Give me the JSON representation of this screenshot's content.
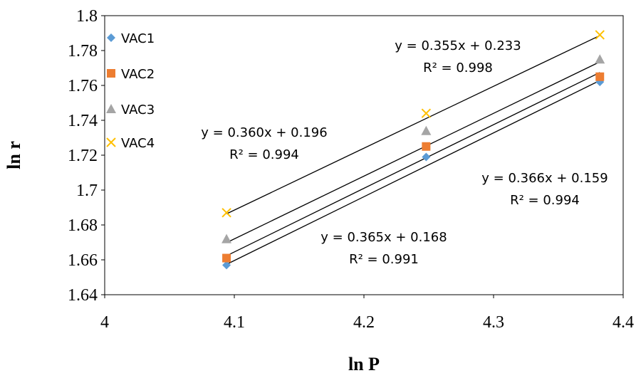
{
  "chart_data": {
    "type": "scatter",
    "title": "",
    "xlabel": "ln P",
    "ylabel": "ln r",
    "xlim": [
      4,
      4.4
    ],
    "ylim": [
      1.64,
      1.8
    ],
    "xticks": [
      "4",
      "4.1",
      "4.2",
      "4.3",
      "4.4"
    ],
    "yticks": [
      "1.64",
      "1.66",
      "1.68",
      "1.7",
      "1.72",
      "1.74",
      "1.76",
      "1.78",
      "1.8"
    ],
    "grid": false,
    "legend_position": "top-left",
    "series": [
      {
        "name": "VAC1",
        "marker": "diamond",
        "color": "#5b9bd5",
        "x": [
          4.094,
          4.248,
          4.382
        ],
        "y": [
          1.657,
          1.719,
          1.762
        ],
        "trendline": {
          "slope": 0.365,
          "intercept": 0.168,
          "equation": "y = 0.365x + 0.168",
          "r2": "R² = 0.991"
        }
      },
      {
        "name": "VAC2",
        "marker": "square",
        "color": "#ed7d31",
        "x": [
          4.094,
          4.248,
          4.382
        ],
        "y": [
          1.661,
          1.725,
          1.765
        ],
        "trendline": {
          "slope": 0.366,
          "intercept": 0.159,
          "equation": "y = 0.366x + 0.159",
          "r2": "R² = 0.994"
        }
      },
      {
        "name": "VAC3",
        "marker": "triangle",
        "color": "#a5a5a5",
        "x": [
          4.094,
          4.248,
          4.382
        ],
        "y": [
          1.672,
          1.734,
          1.775
        ],
        "trendline": {
          "slope": 0.36,
          "intercept": 0.196,
          "equation": "y = 0.360x + 0.196",
          "r2": "R² = 0.994"
        }
      },
      {
        "name": "VAC4",
        "marker": "x",
        "color": "#ffc000",
        "x": [
          4.094,
          4.248,
          4.382
        ],
        "y": [
          1.687,
          1.744,
          1.789
        ],
        "trendline": {
          "slope": 0.355,
          "intercept": 0.233,
          "equation": "y = 0.355x + 0.233",
          "r2": "R² = 0.998"
        }
      }
    ]
  }
}
